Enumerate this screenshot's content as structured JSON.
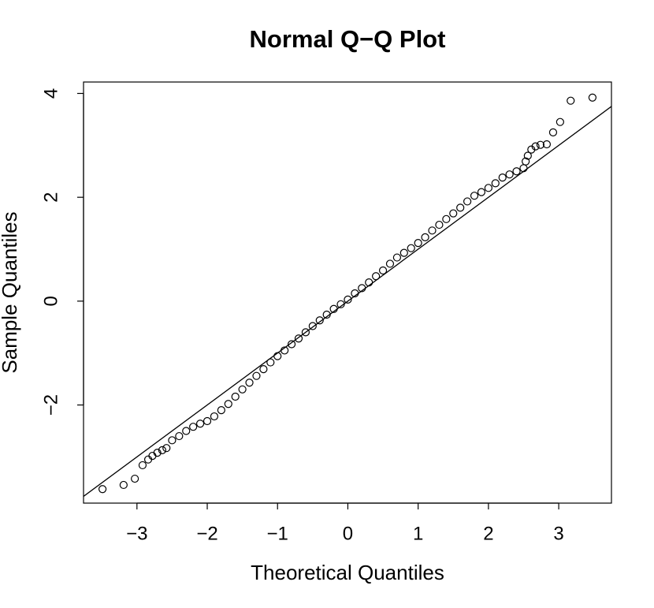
{
  "chart_data": {
    "type": "scatter",
    "title": "Normal Q−Q Plot",
    "x_label": "Theoretical Quantiles",
    "y_label": "Sample Quantiles",
    "x": [
      -3.49,
      -3.19,
      -3.03,
      -2.92,
      -2.84,
      -2.78,
      -2.71,
      -2.64,
      -2.58,
      -2.5,
      -2.4,
      -2.3,
      -2.2,
      -2.1,
      -2.0,
      -1.9,
      -1.8,
      -1.7,
      -1.6,
      -1.5,
      -1.4,
      -1.3,
      -1.2,
      -1.1,
      -1.0,
      -0.9,
      -0.8,
      -0.7,
      -0.6,
      -0.5,
      -0.4,
      -0.3,
      -0.2,
      -0.1,
      0,
      0.1,
      0.2,
      0.3,
      0.4,
      0.5,
      0.6,
      0.7,
      0.8,
      0.9,
      1.0,
      1.1,
      1.2,
      1.3,
      1.4,
      1.5,
      1.6,
      1.7,
      1.8,
      1.9,
      2.0,
      2.1,
      2.2,
      2.3,
      2.4,
      2.5,
      2.53,
      2.56,
      2.61,
      2.67,
      2.74,
      2.83,
      2.92,
      3.02,
      3.17,
      3.48
    ],
    "y": [
      -3.62,
      -3.54,
      -3.42,
      -3.16,
      -3.05,
      -2.98,
      -2.92,
      -2.87,
      -2.83,
      -2.68,
      -2.6,
      -2.5,
      -2.42,
      -2.36,
      -2.31,
      -2.22,
      -2.1,
      -1.98,
      -1.84,
      -1.7,
      -1.57,
      -1.44,
      -1.31,
      -1.18,
      -1.06,
      -0.95,
      -0.83,
      -0.72,
      -0.6,
      -0.48,
      -0.37,
      -0.26,
      -0.15,
      -0.06,
      0.03,
      0.15,
      0.25,
      0.36,
      0.48,
      0.59,
      0.72,
      0.84,
      0.93,
      1.02,
      1.12,
      1.23,
      1.36,
      1.47,
      1.58,
      1.69,
      1.8,
      1.92,
      2.03,
      2.1,
      2.18,
      2.27,
      2.38,
      2.44,
      2.5,
      2.56,
      2.69,
      2.8,
      2.92,
      2.98,
      3.01,
      3.02,
      3.25,
      3.45,
      3.86,
      3.92
    ],
    "color": "#000000",
    "reference_line": {
      "intercept": 0,
      "slope": 1.0
    },
    "xlim": [
      -3.76,
      3.75
    ],
    "ylim": [
      -3.89,
      4.22
    ],
    "xticks": [
      {
        "value": -3,
        "label": "−3"
      },
      {
        "value": -2,
        "label": "−2"
      },
      {
        "value": -1,
        "label": "−1"
      },
      0,
      1,
      2,
      3
    ],
    "yticks": [
      {
        "value": -2,
        "label": "−2"
      },
      0,
      2,
      4
    ],
    "grid": false
  }
}
